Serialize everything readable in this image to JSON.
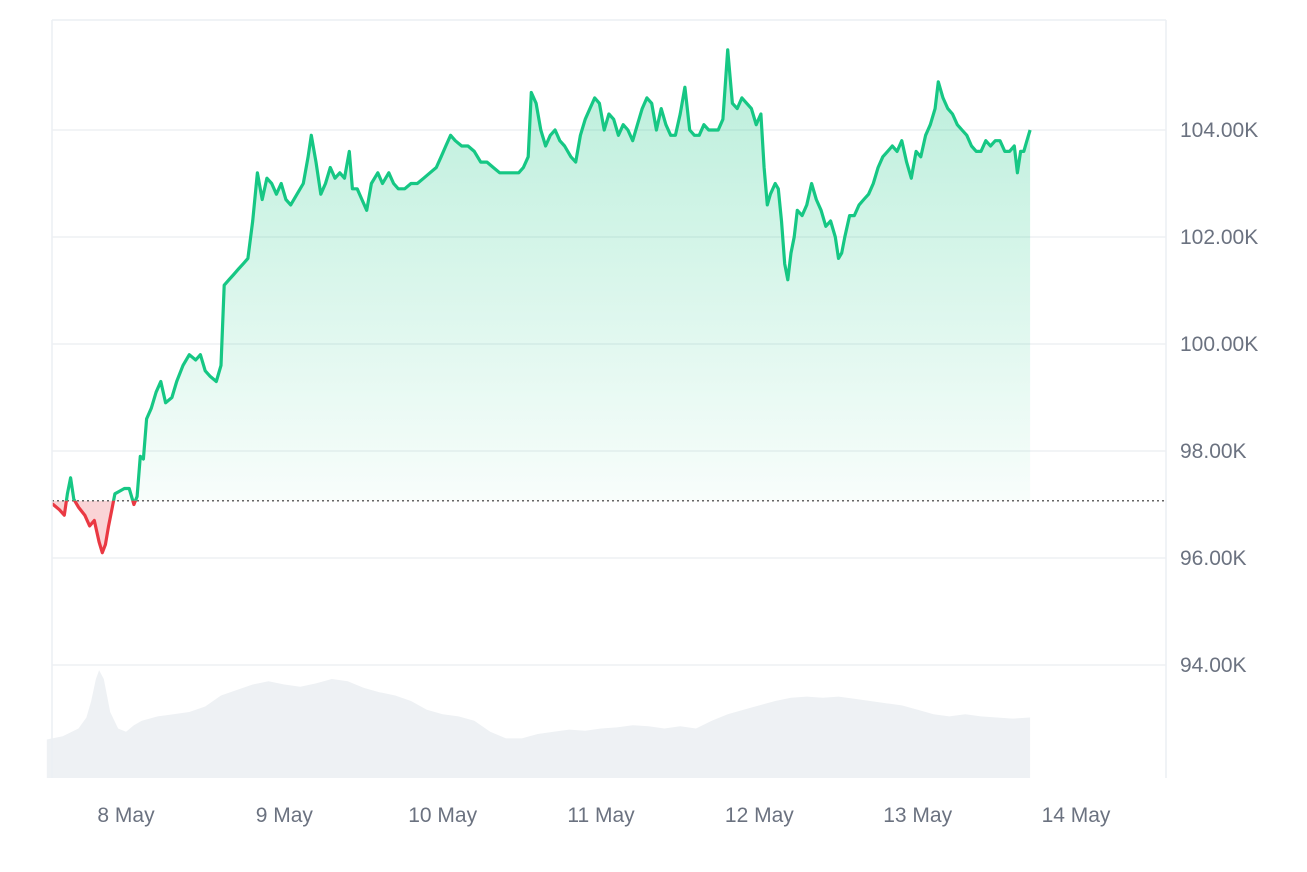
{
  "chart_data": {
    "type": "area",
    "baseline": 97.07,
    "ylim": [
      92,
      106
    ],
    "xlim": [
      0,
      7.3
    ],
    "y_ticks": [
      {
        "value": 94,
        "label": "94.00K"
      },
      {
        "value": 96,
        "label": "96.00K"
      },
      {
        "value": 98,
        "label": "98.00K"
      },
      {
        "value": 100,
        "label": "100.00K"
      },
      {
        "value": 102,
        "label": "102.00K"
      },
      {
        "value": 104,
        "label": "104.00K"
      }
    ],
    "x_ticks": [
      {
        "value": 0.5,
        "label": "8 May"
      },
      {
        "value": 1.5,
        "label": "9 May"
      },
      {
        "value": 2.5,
        "label": "10 May"
      },
      {
        "value": 3.5,
        "label": "11 May"
      },
      {
        "value": 4.5,
        "label": "12 May"
      },
      {
        "value": 5.5,
        "label": "13 May"
      },
      {
        "value": 6.5,
        "label": "14 May"
      }
    ],
    "series": [
      {
        "points": [
          [
            0.0,
            97.07
          ],
          [
            0.04,
            97.0
          ],
          [
            0.08,
            96.9
          ],
          [
            0.11,
            96.8
          ],
          [
            0.13,
            97.2
          ],
          [
            0.15,
            97.5
          ],
          [
            0.17,
            97.1
          ],
          [
            0.2,
            96.95
          ],
          [
            0.24,
            96.8
          ],
          [
            0.27,
            96.6
          ],
          [
            0.3,
            96.7
          ],
          [
            0.33,
            96.3
          ],
          [
            0.35,
            96.1
          ],
          [
            0.37,
            96.25
          ],
          [
            0.39,
            96.6
          ],
          [
            0.41,
            96.9
          ],
          [
            0.43,
            97.2
          ],
          [
            0.46,
            97.25
          ],
          [
            0.49,
            97.3
          ],
          [
            0.52,
            97.3
          ],
          [
            0.55,
            97.0
          ],
          [
            0.57,
            97.15
          ],
          [
            0.59,
            97.9
          ],
          [
            0.61,
            97.85
          ],
          [
            0.63,
            98.6
          ],
          [
            0.66,
            98.8
          ],
          [
            0.69,
            99.1
          ],
          [
            0.72,
            99.3
          ],
          [
            0.75,
            98.9
          ],
          [
            0.79,
            99.0
          ],
          [
            0.82,
            99.3
          ],
          [
            0.86,
            99.6
          ],
          [
            0.9,
            99.8
          ],
          [
            0.94,
            99.7
          ],
          [
            0.97,
            99.8
          ],
          [
            1.0,
            99.5
          ],
          [
            1.03,
            99.4
          ],
          [
            1.07,
            99.3
          ],
          [
            1.1,
            99.6
          ],
          [
            1.12,
            101.1
          ],
          [
            1.15,
            101.2
          ],
          [
            1.18,
            101.3
          ],
          [
            1.21,
            101.4
          ],
          [
            1.24,
            101.5
          ],
          [
            1.27,
            101.6
          ],
          [
            1.3,
            102.3
          ],
          [
            1.33,
            103.2
          ],
          [
            1.36,
            102.7
          ],
          [
            1.39,
            103.1
          ],
          [
            1.42,
            103.0
          ],
          [
            1.45,
            102.8
          ],
          [
            1.48,
            103.0
          ],
          [
            1.51,
            102.7
          ],
          [
            1.54,
            102.6
          ],
          [
            1.58,
            102.8
          ],
          [
            1.62,
            103.0
          ],
          [
            1.65,
            103.5
          ],
          [
            1.67,
            103.9
          ],
          [
            1.7,
            103.4
          ],
          [
            1.73,
            102.8
          ],
          [
            1.76,
            103.0
          ],
          [
            1.79,
            103.3
          ],
          [
            1.82,
            103.1
          ],
          [
            1.85,
            103.2
          ],
          [
            1.88,
            103.1
          ],
          [
            1.91,
            103.6
          ],
          [
            1.93,
            102.9
          ],
          [
            1.96,
            102.9
          ],
          [
            1.99,
            102.7
          ],
          [
            2.02,
            102.5
          ],
          [
            2.05,
            103.0
          ],
          [
            2.09,
            103.2
          ],
          [
            2.12,
            103.0
          ],
          [
            2.16,
            103.2
          ],
          [
            2.19,
            103.0
          ],
          [
            2.22,
            102.9
          ],
          [
            2.26,
            102.9
          ],
          [
            2.3,
            103.0
          ],
          [
            2.34,
            103.0
          ],
          [
            2.38,
            103.1
          ],
          [
            2.42,
            103.2
          ],
          [
            2.46,
            103.3
          ],
          [
            2.49,
            103.5
          ],
          [
            2.52,
            103.7
          ],
          [
            2.55,
            103.9
          ],
          [
            2.58,
            103.8
          ],
          [
            2.62,
            103.7
          ],
          [
            2.66,
            103.7
          ],
          [
            2.7,
            103.6
          ],
          [
            2.74,
            103.4
          ],
          [
            2.78,
            103.4
          ],
          [
            2.82,
            103.3
          ],
          [
            2.86,
            103.2
          ],
          [
            2.9,
            103.2
          ],
          [
            2.94,
            103.2
          ],
          [
            2.98,
            103.2
          ],
          [
            3.01,
            103.3
          ],
          [
            3.04,
            103.5
          ],
          [
            3.06,
            104.7
          ],
          [
            3.09,
            104.5
          ],
          [
            3.12,
            104.0
          ],
          [
            3.15,
            103.7
          ],
          [
            3.18,
            103.9
          ],
          [
            3.21,
            104.0
          ],
          [
            3.24,
            103.8
          ],
          [
            3.27,
            103.7
          ],
          [
            3.31,
            103.5
          ],
          [
            3.34,
            103.4
          ],
          [
            3.37,
            103.9
          ],
          [
            3.4,
            104.2
          ],
          [
            3.43,
            104.4
          ],
          [
            3.46,
            104.6
          ],
          [
            3.49,
            104.5
          ],
          [
            3.52,
            104.0
          ],
          [
            3.55,
            104.3
          ],
          [
            3.58,
            104.2
          ],
          [
            3.61,
            103.9
          ],
          [
            3.64,
            104.1
          ],
          [
            3.67,
            104.0
          ],
          [
            3.7,
            103.8
          ],
          [
            3.73,
            104.1
          ],
          [
            3.76,
            104.4
          ],
          [
            3.79,
            104.6
          ],
          [
            3.82,
            104.5
          ],
          [
            3.85,
            104.0
          ],
          [
            3.88,
            104.4
          ],
          [
            3.91,
            104.1
          ],
          [
            3.94,
            103.9
          ],
          [
            3.97,
            103.9
          ],
          [
            4.0,
            104.3
          ],
          [
            4.03,
            104.8
          ],
          [
            4.06,
            104.0
          ],
          [
            4.09,
            103.9
          ],
          [
            4.12,
            103.9
          ],
          [
            4.15,
            104.1
          ],
          [
            4.18,
            104.0
          ],
          [
            4.21,
            104.0
          ],
          [
            4.24,
            104.0
          ],
          [
            4.27,
            104.2
          ],
          [
            4.3,
            105.5
          ],
          [
            4.33,
            104.5
          ],
          [
            4.36,
            104.4
          ],
          [
            4.39,
            104.6
          ],
          [
            4.42,
            104.5
          ],
          [
            4.45,
            104.4
          ],
          [
            4.48,
            104.1
          ],
          [
            4.51,
            104.3
          ],
          [
            4.53,
            103.3
          ],
          [
            4.55,
            102.6
          ],
          [
            4.57,
            102.8
          ],
          [
            4.6,
            103.0
          ],
          [
            4.62,
            102.9
          ],
          [
            4.64,
            102.3
          ],
          [
            4.66,
            101.5
          ],
          [
            4.68,
            101.2
          ],
          [
            4.7,
            101.7
          ],
          [
            4.72,
            102.0
          ],
          [
            4.74,
            102.5
          ],
          [
            4.77,
            102.4
          ],
          [
            4.8,
            102.6
          ],
          [
            4.83,
            103.0
          ],
          [
            4.86,
            102.7
          ],
          [
            4.89,
            102.5
          ],
          [
            4.92,
            102.2
          ],
          [
            4.95,
            102.3
          ],
          [
            4.98,
            102.0
          ],
          [
            5.0,
            101.6
          ],
          [
            5.02,
            101.7
          ],
          [
            5.04,
            102.0
          ],
          [
            5.07,
            102.4
          ],
          [
            5.1,
            102.4
          ],
          [
            5.13,
            102.6
          ],
          [
            5.16,
            102.7
          ],
          [
            5.19,
            102.8
          ],
          [
            5.22,
            103.0
          ],
          [
            5.25,
            103.3
          ],
          [
            5.28,
            103.5
          ],
          [
            5.31,
            103.6
          ],
          [
            5.34,
            103.7
          ],
          [
            5.37,
            103.6
          ],
          [
            5.4,
            103.8
          ],
          [
            5.43,
            103.4
          ],
          [
            5.46,
            103.1
          ],
          [
            5.49,
            103.6
          ],
          [
            5.52,
            103.5
          ],
          [
            5.55,
            103.9
          ],
          [
            5.58,
            104.1
          ],
          [
            5.61,
            104.4
          ],
          [
            5.63,
            104.9
          ],
          [
            5.66,
            104.6
          ],
          [
            5.69,
            104.4
          ],
          [
            5.72,
            104.3
          ],
          [
            5.75,
            104.1
          ],
          [
            5.78,
            104.0
          ],
          [
            5.81,
            103.9
          ],
          [
            5.84,
            103.7
          ],
          [
            5.87,
            103.6
          ],
          [
            5.9,
            103.6
          ],
          [
            5.93,
            103.8
          ],
          [
            5.96,
            103.7
          ],
          [
            5.99,
            103.8
          ],
          [
            6.02,
            103.8
          ],
          [
            6.05,
            103.6
          ],
          [
            6.08,
            103.6
          ],
          [
            6.11,
            103.7
          ],
          [
            6.13,
            103.2
          ],
          [
            6.15,
            103.6
          ],
          [
            6.17,
            103.6
          ],
          [
            6.19,
            103.8
          ],
          [
            6.21,
            104.0
          ]
        ]
      }
    ],
    "volume": {
      "color": "#eef1f4",
      "points": [
        [
          0.0,
          0.35
        ],
        [
          0.1,
          0.38
        ],
        [
          0.2,
          0.45
        ],
        [
          0.25,
          0.55
        ],
        [
          0.28,
          0.7
        ],
        [
          0.31,
          0.9
        ],
        [
          0.33,
          0.98
        ],
        [
          0.36,
          0.9
        ],
        [
          0.4,
          0.6
        ],
        [
          0.45,
          0.45
        ],
        [
          0.5,
          0.42
        ],
        [
          0.55,
          0.48
        ],
        [
          0.6,
          0.52
        ],
        [
          0.7,
          0.56
        ],
        [
          0.8,
          0.58
        ],
        [
          0.9,
          0.6
        ],
        [
          1.0,
          0.65
        ],
        [
          1.05,
          0.7
        ],
        [
          1.1,
          0.75
        ],
        [
          1.2,
          0.8
        ],
        [
          1.3,
          0.85
        ],
        [
          1.4,
          0.88
        ],
        [
          1.5,
          0.85
        ],
        [
          1.6,
          0.83
        ],
        [
          1.7,
          0.86
        ],
        [
          1.8,
          0.9
        ],
        [
          1.9,
          0.88
        ],
        [
          2.0,
          0.82
        ],
        [
          2.1,
          0.78
        ],
        [
          2.2,
          0.75
        ],
        [
          2.3,
          0.7
        ],
        [
          2.4,
          0.62
        ],
        [
          2.5,
          0.58
        ],
        [
          2.6,
          0.56
        ],
        [
          2.7,
          0.52
        ],
        [
          2.8,
          0.42
        ],
        [
          2.9,
          0.36
        ],
        [
          3.0,
          0.36
        ],
        [
          3.1,
          0.4
        ],
        [
          3.2,
          0.42
        ],
        [
          3.3,
          0.44
        ],
        [
          3.4,
          0.43
        ],
        [
          3.5,
          0.45
        ],
        [
          3.6,
          0.46
        ],
        [
          3.7,
          0.48
        ],
        [
          3.8,
          0.47
        ],
        [
          3.9,
          0.45
        ],
        [
          4.0,
          0.47
        ],
        [
          4.1,
          0.45
        ],
        [
          4.2,
          0.52
        ],
        [
          4.3,
          0.58
        ],
        [
          4.4,
          0.62
        ],
        [
          4.5,
          0.66
        ],
        [
          4.6,
          0.7
        ],
        [
          4.7,
          0.73
        ],
        [
          4.8,
          0.74
        ],
        [
          4.9,
          0.73
        ],
        [
          5.0,
          0.74
        ],
        [
          5.1,
          0.72
        ],
        [
          5.2,
          0.7
        ],
        [
          5.3,
          0.68
        ],
        [
          5.4,
          0.66
        ],
        [
          5.5,
          0.62
        ],
        [
          5.6,
          0.58
        ],
        [
          5.7,
          0.56
        ],
        [
          5.8,
          0.58
        ],
        [
          5.9,
          0.56
        ],
        [
          6.0,
          0.55
        ],
        [
          6.1,
          0.54
        ],
        [
          6.21,
          0.55
        ]
      ]
    },
    "colors": {
      "up_line": "#16c784",
      "down_line": "#ea3943",
      "up_fill": "#16c784",
      "down_fill": "#ea3943",
      "grid": "#eef0f3",
      "baseline": "#666666",
      "axis_text": "#6b7280",
      "frame": "#eceff3"
    }
  }
}
